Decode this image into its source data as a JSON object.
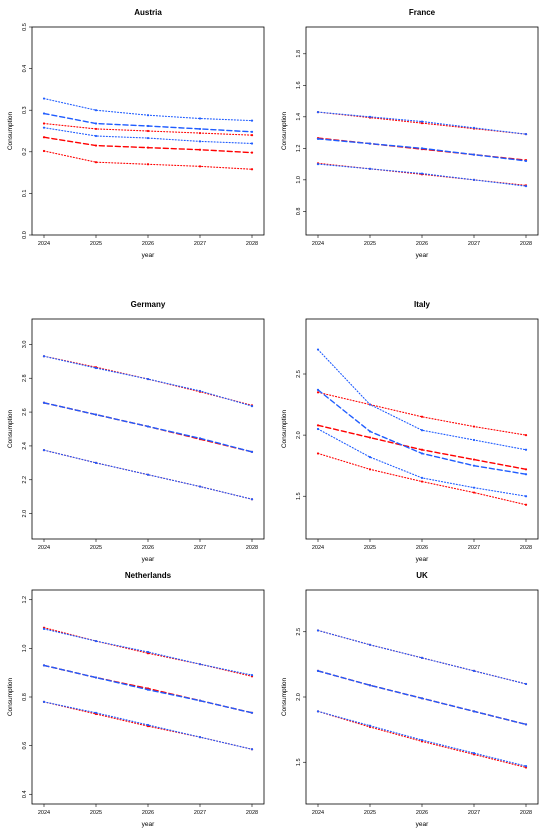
{
  "figure": {
    "xlabel": "year",
    "ylabel": "Consumption",
    "colors": {
      "red": "#ff0000",
      "blue": "#1f5cff"
    }
  },
  "chart_data": [
    {
      "type": "line",
      "title": "Austria",
      "xlabel": "year",
      "ylabel": "Consumption",
      "x": [
        2024,
        2025,
        2026,
        2027,
        2028
      ],
      "xticks": [
        "2024",
        "2025",
        "2026",
        "2027",
        "2028"
      ],
      "ylim": [
        0,
        0.5
      ],
      "yticks": [
        0.0,
        0.1,
        0.2,
        0.3,
        0.4,
        0.5
      ],
      "ytick_labels": [
        "0.0",
        "0.1",
        "0.2",
        "0.3",
        "0.4",
        "0.5"
      ],
      "series": [
        {
          "color": "red",
          "style": "dashed",
          "values": [
            0.235,
            0.215,
            0.21,
            0.205,
            0.198
          ]
        },
        {
          "color": "red",
          "style": "dotted",
          "values": [
            0.268,
            0.255,
            0.25,
            0.245,
            0.24
          ]
        },
        {
          "color": "red",
          "style": "dotted",
          "values": [
            0.202,
            0.175,
            0.17,
            0.165,
            0.158
          ]
        },
        {
          "color": "blue",
          "style": "dashed",
          "values": [
            0.292,
            0.268,
            0.262,
            0.255,
            0.248
          ]
        },
        {
          "color": "blue",
          "style": "dotted",
          "values": [
            0.328,
            0.3,
            0.288,
            0.28,
            0.275
          ]
        },
        {
          "color": "blue",
          "style": "dotted",
          "values": [
            0.258,
            0.238,
            0.233,
            0.225,
            0.22
          ]
        }
      ]
    },
    {
      "type": "line",
      "title": "France",
      "xlabel": "year",
      "ylabel": "Consumption",
      "x": [
        2024,
        2025,
        2026,
        2027,
        2028
      ],
      "xticks": [
        "2024",
        "2025",
        "2026",
        "2027",
        "2028"
      ],
      "ylim": [
        0.65,
        1.97
      ],
      "yticks": [
        0.8,
        1.0,
        1.2,
        1.4,
        1.6,
        1.8
      ],
      "ytick_labels": [
        "0.8",
        "1.0",
        "1.2",
        "1.4",
        "1.6",
        "1.8"
      ],
      "series": [
        {
          "color": "red",
          "style": "dashed",
          "values": [
            1.265,
            1.23,
            1.195,
            1.16,
            1.125
          ]
        },
        {
          "color": "red",
          "style": "dotted",
          "values": [
            1.43,
            1.395,
            1.36,
            1.325,
            1.29
          ]
        },
        {
          "color": "red",
          "style": "dotted",
          "values": [
            1.105,
            1.07,
            1.035,
            1.0,
            0.965
          ]
        },
        {
          "color": "blue",
          "style": "dashed",
          "values": [
            1.26,
            1.23,
            1.2,
            1.16,
            1.12
          ]
        },
        {
          "color": "blue",
          "style": "dotted",
          "values": [
            1.43,
            1.4,
            1.37,
            1.33,
            1.29
          ]
        },
        {
          "color": "blue",
          "style": "dotted",
          "values": [
            1.1,
            1.07,
            1.04,
            1.0,
            0.96
          ]
        }
      ]
    },
    {
      "type": "line",
      "title": "Germany",
      "xlabel": "year",
      "ylabel": "Consumption",
      "x": [
        2024,
        2025,
        2026,
        2027,
        2028
      ],
      "xticks": [
        "2024",
        "2025",
        "2026",
        "2027",
        "2028"
      ],
      "ylim": [
        1.85,
        3.15
      ],
      "yticks": [
        2.0,
        2.2,
        2.4,
        2.6,
        2.8,
        3.0
      ],
      "ytick_labels": [
        "2.0",
        "2.2",
        "2.4",
        "2.6",
        "2.8",
        "3.0"
      ],
      "series": [
        {
          "color": "red",
          "style": "dashed",
          "values": [
            2.655,
            2.585,
            2.515,
            2.44,
            2.365
          ]
        },
        {
          "color": "red",
          "style": "dotted",
          "values": [
            2.93,
            2.865,
            2.795,
            2.72,
            2.64
          ]
        },
        {
          "color": "red",
          "style": "dotted",
          "values": [
            2.375,
            2.3,
            2.23,
            2.16,
            2.085
          ]
        },
        {
          "color": "blue",
          "style": "dashed",
          "values": [
            2.655,
            2.585,
            2.515,
            2.445,
            2.365
          ]
        },
        {
          "color": "blue",
          "style": "dotted",
          "values": [
            2.93,
            2.86,
            2.795,
            2.725,
            2.635
          ]
        },
        {
          "color": "blue",
          "style": "dotted",
          "values": [
            2.375,
            2.3,
            2.23,
            2.16,
            2.085
          ]
        }
      ]
    },
    {
      "type": "line",
      "title": "Italy",
      "xlabel": "year",
      "ylabel": "Consumption",
      "x": [
        2024,
        2025,
        2026,
        2027,
        2028
      ],
      "xticks": [
        "2024",
        "2025",
        "2026",
        "2027",
        "2028"
      ],
      "ylim": [
        1.15,
        2.95
      ],
      "yticks": [
        1.5,
        2.0,
        2.5
      ],
      "ytick_labels": [
        "1.5",
        "2.0",
        "2.5"
      ],
      "series": [
        {
          "color": "red",
          "style": "dashed",
          "values": [
            2.08,
            1.98,
            1.88,
            1.8,
            1.72
          ]
        },
        {
          "color": "red",
          "style": "dotted",
          "values": [
            2.35,
            2.25,
            2.15,
            2.07,
            2.0
          ]
        },
        {
          "color": "red",
          "style": "dotted",
          "values": [
            1.85,
            1.72,
            1.62,
            1.53,
            1.43
          ]
        },
        {
          "color": "blue",
          "style": "dashed",
          "values": [
            2.37,
            2.03,
            1.85,
            1.75,
            1.68
          ]
        },
        {
          "color": "blue",
          "style": "dotted",
          "values": [
            2.7,
            2.25,
            2.04,
            1.96,
            1.88
          ]
        },
        {
          "color": "blue",
          "style": "dotted",
          "values": [
            2.05,
            1.82,
            1.65,
            1.57,
            1.5
          ]
        }
      ]
    },
    {
      "type": "line",
      "title": "Netherlands",
      "xlabel": "year",
      "ylabel": "Consumption",
      "x": [
        2024,
        2025,
        2026,
        2027,
        2028
      ],
      "xticks": [
        "2024",
        "2025",
        "2026",
        "2027",
        "2028"
      ],
      "ylim": [
        0.36,
        1.24
      ],
      "yticks": [
        0.4,
        0.6,
        0.8,
        1.0,
        1.2
      ],
      "ytick_labels": [
        "0.4",
        "0.6",
        "0.8",
        "1.0",
        "1.2"
      ],
      "series": [
        {
          "color": "red",
          "style": "dashed",
          "values": [
            0.93,
            0.88,
            0.835,
            0.785,
            0.735
          ]
        },
        {
          "color": "red",
          "style": "dotted",
          "values": [
            1.085,
            1.03,
            0.98,
            0.935,
            0.885
          ]
        },
        {
          "color": "red",
          "style": "dotted",
          "values": [
            0.78,
            0.73,
            0.68,
            0.635,
            0.585
          ]
        },
        {
          "color": "blue",
          "style": "dashed",
          "values": [
            0.93,
            0.88,
            0.83,
            0.785,
            0.735
          ]
        },
        {
          "color": "blue",
          "style": "dotted",
          "values": [
            1.08,
            1.03,
            0.985,
            0.935,
            0.89
          ]
        },
        {
          "color": "blue",
          "style": "dotted",
          "values": [
            0.78,
            0.735,
            0.685,
            0.635,
            0.585
          ]
        }
      ]
    },
    {
      "type": "line",
      "title": "UK",
      "xlabel": "year",
      "ylabel": "Consumption",
      "x": [
        2024,
        2025,
        2026,
        2027,
        2028
      ],
      "xticks": [
        "2024",
        "2025",
        "2026",
        "2027",
        "2028"
      ],
      "ylim": [
        1.18,
        2.82
      ],
      "yticks": [
        1.5,
        2.0,
        2.5
      ],
      "ytick_labels": [
        "1.5",
        "2.0",
        "2.5"
      ],
      "series": [
        {
          "color": "red",
          "style": "dashed",
          "values": [
            2.2,
            2.09,
            1.99,
            1.89,
            1.79
          ]
        },
        {
          "color": "red",
          "style": "dotted",
          "values": [
            2.51,
            2.4,
            2.3,
            2.2,
            2.1
          ]
        },
        {
          "color": "red",
          "style": "dotted",
          "values": [
            1.89,
            1.77,
            1.66,
            1.56,
            1.46
          ]
        },
        {
          "color": "blue",
          "style": "dashed",
          "values": [
            2.2,
            2.09,
            1.99,
            1.89,
            1.79
          ]
        },
        {
          "color": "blue",
          "style": "dotted",
          "values": [
            2.51,
            2.4,
            2.3,
            2.2,
            2.1
          ]
        },
        {
          "color": "blue",
          "style": "dotted",
          "values": [
            1.89,
            1.78,
            1.67,
            1.57,
            1.47
          ]
        }
      ]
    }
  ]
}
